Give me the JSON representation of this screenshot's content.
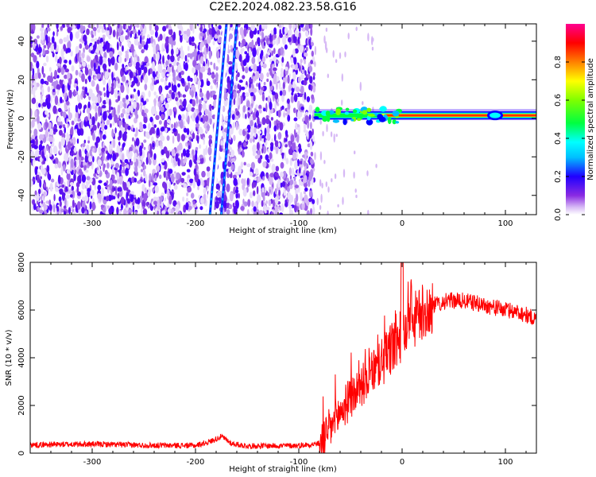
{
  "title": "C2E2.2024.082.23.58.G16",
  "chart_data": [
    {
      "type": "heatmap",
      "xlabel": "Height of straight line (km)",
      "ylabel": "Frequency (Hz)",
      "xlim": [
        -360,
        130
      ],
      "ylim": [
        -50,
        49
      ],
      "xticks": [
        -300,
        -200,
        -100,
        0,
        100
      ],
      "yticks": [
        -40,
        -20,
        0,
        20,
        40
      ],
      "noise_region_x": [
        -360,
        -85
      ],
      "signal_start_x": -85,
      "signal_frequency": 1.5,
      "diagonal_streaks": [
        {
          "x_at_ymin": -186,
          "x_at_ymax": -170
        },
        {
          "x_at_ymin": -175,
          "x_at_ymax": -160
        }
      ],
      "colorbar": {
        "label": "Normalized spectral amplitude",
        "range": [
          0,
          1
        ],
        "ticks": [
          "0.0",
          "0.2",
          "0.4",
          "0.6",
          "0.8"
        ],
        "colors": [
          "#ffffff",
          "#d6b8f5",
          "#8a2be2",
          "#4b00ff",
          "#0000ff",
          "#00bfff",
          "#00ffff",
          "#00ff40",
          "#7fff00",
          "#ffff00",
          "#ff8000",
          "#ff0000",
          "#ff0090"
        ]
      }
    },
    {
      "type": "line",
      "xlabel": "Height of straight line (km)",
      "ylabel": "SNR (10 * v/v)",
      "xlim": [
        -360,
        130
      ],
      "ylim": [
        0,
        8000
      ],
      "xticks": [
        -300,
        -200,
        -100,
        0,
        100
      ],
      "yticks": [
        0,
        2000,
        4000,
        6000,
        8000
      ],
      "series": [
        {
          "color": "#ff0000",
          "x": [
            -360,
            -300,
            -250,
            -200,
            -185,
            -175,
            -165,
            -150,
            -100,
            -80,
            -70,
            -60,
            -50,
            -40,
            -30,
            -20,
            -10,
            0,
            10,
            20,
            30,
            40,
            50,
            60,
            70,
            80,
            90,
            100,
            110,
            120,
            130
          ],
          "y": [
            350,
            380,
            330,
            320,
            500,
            700,
            400,
            300,
            320,
            400,
            1000,
            1700,
            2300,
            2800,
            3300,
            3800,
            4400,
            5000,
            5500,
            5900,
            6200,
            6350,
            6400,
            6380,
            6300,
            6200,
            6100,
            6000,
            5950,
            5800,
            5600
          ]
        }
      ]
    }
  ]
}
